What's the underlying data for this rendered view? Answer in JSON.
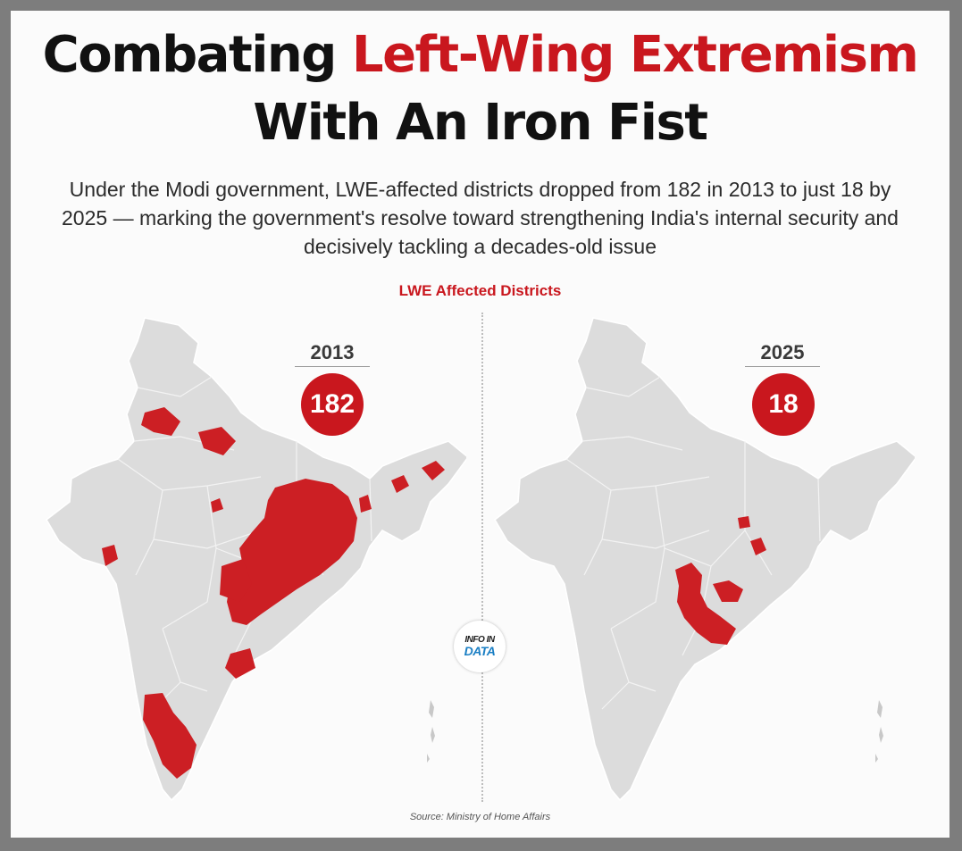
{
  "title": {
    "line1_prefix": "Combating ",
    "line1_accent": "Left-Wing Extremism",
    "line2": "With An Iron Fist"
  },
  "subtitle": "Under the Modi government, LWE-affected districts dropped from 182 in 2013 to just 18 by 2025 — marking the government's resolve toward strengthening India's internal security and decisively tackling a decades-old issue",
  "section_label": "LWE Affected Districts",
  "maps": [
    {
      "year": "2013",
      "count": "182"
    },
    {
      "year": "2025",
      "count": "18"
    }
  ],
  "logo": {
    "line1": "INFO IN",
    "line2": "DATA"
  },
  "source": "Source: Ministry of Home Affairs",
  "colors": {
    "accent": "#c9171e",
    "land": "#dcdcdc",
    "background": "#fbfbfb"
  }
}
